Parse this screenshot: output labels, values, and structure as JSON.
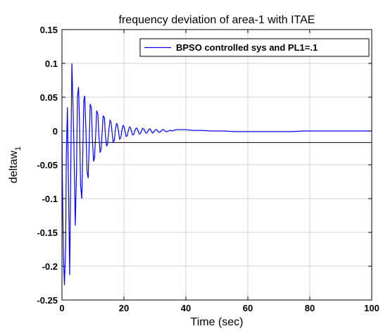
{
  "chart_data": {
    "type": "line",
    "title": "frequency deviation of area-1 with ITAE",
    "xlabel": "Time (sec)",
    "ylabel": "deltaw",
    "ylabel_subscript": "1",
    "xlim": [
      0,
      100
    ],
    "ylim": [
      -0.25,
      0.15
    ],
    "xticks": [
      0,
      20,
      40,
      60,
      80,
      100
    ],
    "yticks": [
      0.15,
      0.1,
      0.05,
      0,
      -0.05,
      -0.1,
      -0.15,
      -0.2,
      -0.25
    ],
    "xtick_labels": [
      "0",
      "20",
      "40",
      "60",
      "80",
      "100"
    ],
    "ytick_labels": [
      "0.15",
      "0.1",
      "0.05",
      "0",
      "-0.05",
      "-0.1",
      "-0.15",
      "-0.2",
      "-0.25"
    ],
    "grid": true,
    "legend_position": "top-right",
    "extra_hline_y": -0.017,
    "series": [
      {
        "name": "BPSO controlled sys and PL1=.1",
        "color": "#0000ff",
        "x": [
          0,
          0.1,
          0.22,
          0.5,
          0.8,
          1.2,
          1.4,
          1.75,
          2.1,
          2.5,
          2.85,
          3.2,
          3.55,
          3.85,
          4.3,
          4.7,
          5.0,
          5.35,
          5.65,
          6.0,
          6.4,
          6.7,
          7.05,
          7.35,
          7.75,
          8.1,
          8.45,
          8.8,
          9.1,
          9.5,
          9.8,
          10.2,
          10.5,
          10.9,
          11.2,
          11.6,
          11.9,
          12.3,
          12.6,
          13.0,
          13.3,
          13.7,
          14.0,
          14.4,
          14.7,
          15.1,
          15.5,
          15.8,
          16.2,
          16.5,
          16.9,
          17.2,
          17.6,
          17.9,
          18.3,
          18.6,
          19.0,
          19.3,
          19.7,
          20.0,
          20.4,
          20.7,
          21.1,
          21.4,
          21.8,
          22.1,
          22.5,
          22.8,
          23.2,
          23.5,
          23.9,
          24.2,
          24.6,
          24.9,
          25.3,
          25.7,
          26.0,
          26.4,
          26.7,
          27.1,
          27.4,
          27.8,
          28.1,
          28.5,
          28.8,
          29.2,
          29.5,
          29.9,
          30.2,
          30.6,
          30.9,
          31.3,
          31.6,
          32.0,
          32.4,
          32.8,
          33.2,
          33.6,
          34.0,
          34.4,
          34.8,
          35.2,
          35.6,
          36.0,
          37,
          38,
          40,
          42,
          45,
          48,
          52,
          56,
          60,
          65,
          70,
          74,
          78,
          85,
          92,
          100
        ],
        "y": [
          0,
          -0.06,
          -0.1,
          -0.19,
          -0.228,
          -0.17,
          -0.04,
          0.035,
          -0.08,
          -0.213,
          -0.05,
          0.1,
          0.04,
          -0.02,
          -0.14,
          -0.06,
          0.05,
          0.065,
          0.015,
          -0.08,
          -0.1,
          -0.04,
          0.045,
          0.052,
          0.0,
          -0.06,
          -0.07,
          -0.02,
          0.04,
          0.034,
          -0.01,
          -0.045,
          -0.04,
          -0.005,
          0.03,
          0.025,
          -0.005,
          -0.032,
          -0.028,
          0.0,
          0.022,
          0.02,
          -0.005,
          -0.022,
          -0.02,
          0.0,
          0.016,
          0.014,
          -0.003,
          -0.016,
          -0.014,
          0.0,
          0.011,
          0.01,
          -0.002,
          -0.012,
          -0.01,
          0.0,
          0.008,
          0.007,
          -0.001,
          -0.008,
          -0.007,
          0.0,
          0.006,
          0.005,
          -0.001,
          -0.006,
          -0.005,
          0.0,
          0.004,
          0.004,
          0.0,
          -0.004,
          -0.004,
          0.0,
          0.004,
          0.003,
          0.0,
          -0.003,
          -0.003,
          0.0,
          0.003,
          0.003,
          0.0,
          -0.003,
          -0.002,
          0.0,
          0.002,
          0.002,
          0.0,
          -0.002,
          -0.002,
          0.0,
          0.002,
          0.002,
          0.0,
          -0.001,
          -0.001,
          0.0,
          0.001,
          0.001,
          0.0,
          0.001,
          0.002,
          0.002,
          0.002,
          0.001,
          0.001,
          0.0,
          0.0,
          -0.001,
          -0.001,
          -0.001,
          -0.001,
          -0.001,
          0.0,
          0.0,
          0.0,
          0.0
        ]
      }
    ]
  }
}
